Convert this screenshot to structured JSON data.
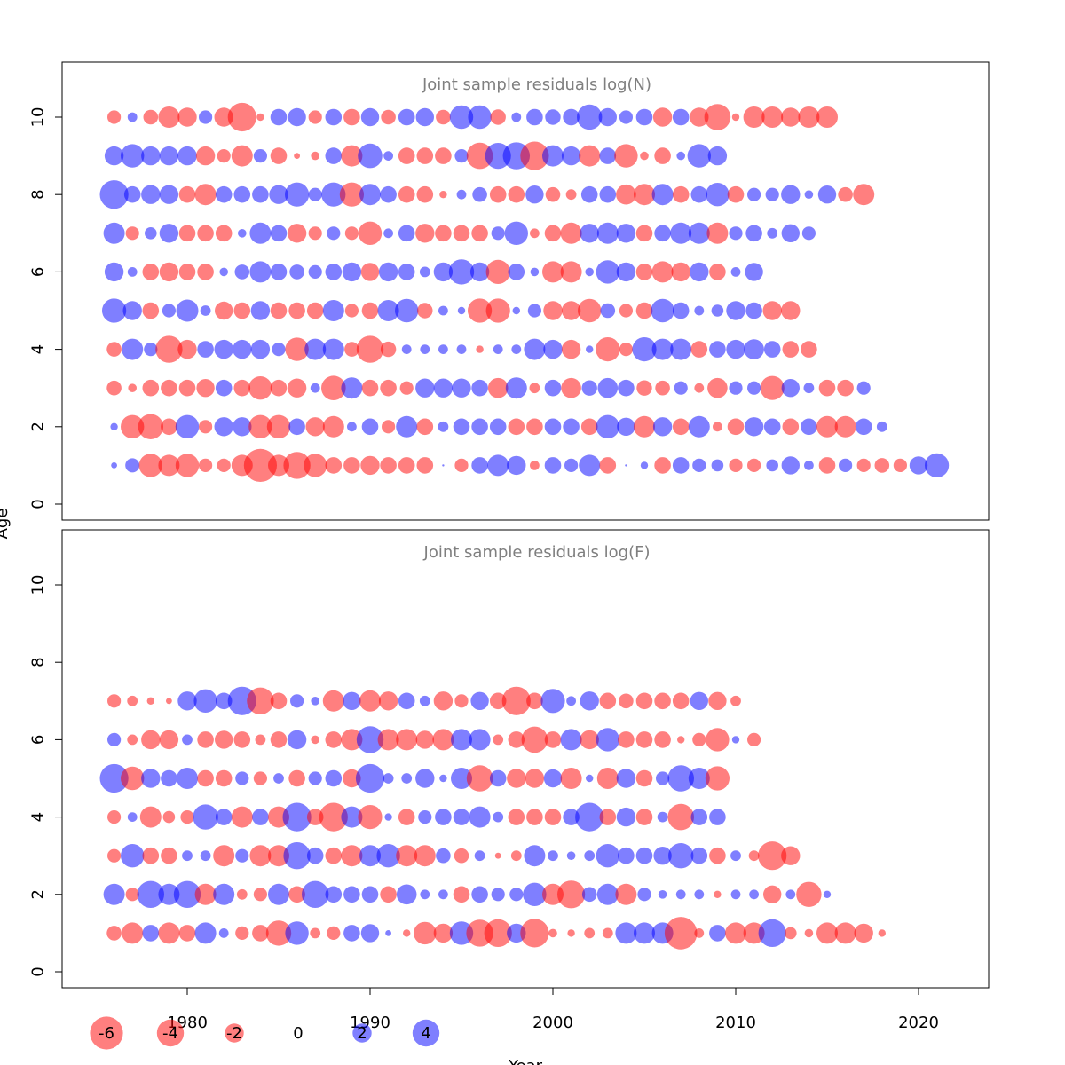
{
  "chart_data": [
    {
      "type": "scatter",
      "subtype": "bubble",
      "title": "Joint sample residuals log(N)",
      "xlabel": "Year",
      "ylabel": "Age",
      "xlim": [
        1974,
        2024
      ],
      "ylim": [
        0,
        11
      ],
      "xticks": [
        1980,
        1990,
        2000,
        2010,
        2020
      ],
      "yticks": [
        0,
        2,
        4,
        6,
        8,
        10
      ],
      "years_first": 1976,
      "ages": [
        1,
        2,
        3,
        4,
        5,
        6,
        7,
        8,
        9,
        10
      ],
      "residuals_by_age": {
        "1": [
          0.2,
          1.1,
          -3,
          -2.5,
          -3,
          -1,
          -1,
          -2.5,
          -6,
          -2.5,
          -4,
          -3,
          -1.5,
          -1.5,
          -2,
          -1.5,
          -1.5,
          -1.5,
          0,
          -1,
          1.5,
          2.5,
          2,
          -0.5,
          1.5,
          1,
          2.5,
          -1.5,
          0,
          0.3,
          -1.5,
          1.5,
          1,
          0.8,
          -1,
          -1,
          0.8,
          1.8,
          0.5,
          -1.5,
          1,
          -1,
          -1.2,
          -1,
          1.8,
          3.2
        ],
        "2": [
          0.3,
          -3,
          -3.5,
          -1.5,
          3,
          -1,
          2,
          2,
          -3,
          -3,
          1.5,
          -2,
          -2.5,
          0.5,
          1.5,
          -1,
          2.5,
          -1.5,
          0.6,
          1.5,
          1.5,
          1.5,
          -1.5,
          -1.5,
          1.5,
          1.5,
          -1.5,
          3,
          1.8,
          -2.5,
          2,
          -1.5,
          2.5,
          -0.5,
          -1.5,
          2,
          1.5,
          -1.5,
          1.5,
          -2.5,
          -2.5,
          1.5,
          0.6
        ],
        "3": [
          -1.2,
          -0.4,
          -1.5,
          -1.5,
          -1.5,
          -1.8,
          1.5,
          -1.5,
          -3,
          -1.5,
          -2,
          0.5,
          -3.3,
          2.5,
          -1.5,
          -1.5,
          -1,
          2,
          2,
          2,
          1.5,
          -2.2,
          2.5,
          -0.6,
          1.5,
          -2.2,
          1.3,
          2.2,
          1.5,
          -1.3,
          -1.2,
          1,
          -0.5,
          -2.2,
          1,
          1,
          -3.2,
          1.8,
          0.6,
          -1.5,
          -1.5,
          1
        ],
        "4": [
          -1.2,
          2.5,
          1,
          -4,
          -2,
          1.5,
          2,
          2,
          2,
          1,
          -3,
          2.5,
          2.5,
          -1.2,
          -4,
          -1.3,
          0.5,
          0.5,
          0.5,
          0.5,
          -0.3,
          0.5,
          0.5,
          2.5,
          2,
          -2,
          0.3,
          -3.2,
          -1,
          3.2,
          2.5,
          2.5,
          -1.5,
          1.5,
          2,
          2.2,
          1.5,
          -1.5,
          -1.5
        ],
        "5": [
          3.2,
          2,
          -1.5,
          1,
          2.7,
          0.6,
          -1.8,
          -1.5,
          2,
          -1.5,
          -1.5,
          -1.5,
          2.5,
          -1,
          -1.5,
          2.5,
          3,
          -1.3,
          0.5,
          0.3,
          -3.2,
          -3.2,
          0.3,
          1,
          -2,
          -2,
          -3,
          1.2,
          -1,
          -1.5,
          3,
          1.5,
          0.5,
          0.8,
          2,
          1.5,
          -2,
          -2
        ],
        "6": [
          2,
          0.5,
          -1.5,
          -2,
          -1.5,
          -1.5,
          0.4,
          1.2,
          2.5,
          1.5,
          1.2,
          1,
          1.5,
          2,
          -1.8,
          2,
          1.5,
          0.6,
          2,
          3.5,
          2,
          -3.2,
          1.5,
          0.4,
          -2.5,
          -2.5,
          0.4,
          3,
          2,
          -1.5,
          -2.5,
          -2,
          2,
          -1.5,
          0.5,
          1.8
        ],
        "7": [
          2.5,
          -1,
          0.8,
          2,
          -1.5,
          -1.5,
          -1.5,
          0.4,
          2.5,
          1.5,
          -2,
          -1,
          1,
          -1,
          -3,
          0.5,
          1.5,
          -2,
          -1.5,
          -1.5,
          -1.5,
          1,
          3,
          -0.5,
          -1.5,
          -2.5,
          2,
          2.5,
          2,
          -1.5,
          1.5,
          2.5,
          2.5,
          -2.5,
          1,
          1.5,
          0.6,
          1.8,
          1
        ],
        "8": [
          4.5,
          1.5,
          2,
          2,
          -1.5,
          -2.5,
          1.5,
          1.5,
          1.5,
          2,
          3.2,
          1,
          3.2,
          -3.2,
          2.5,
          1.5,
          -1.5,
          -1.5,
          -0.3,
          0.5,
          1.2,
          -1.5,
          -1.5,
          1.8,
          -1.2,
          -0.6,
          1.5,
          1.5,
          -2.2,
          -2.5,
          2.5,
          -1.5,
          1.5,
          3,
          -1.5,
          1,
          1,
          2,
          0.4,
          1.8,
          -1.2,
          -2.5
        ],
        "9": [
          2,
          3,
          2,
          2,
          2,
          -2,
          -1,
          -2.5,
          1,
          -1.5,
          -0.2,
          -0.4,
          1.5,
          -2.5,
          3.3,
          0.5,
          -1.5,
          -1.5,
          -1.5,
          1,
          -3.8,
          3.7,
          4,
          -4.5,
          2.5,
          2,
          -2.5,
          1.5,
          -3,
          -0.4,
          -1.5,
          0.4,
          3,
          2
        ],
        "10": [
          -1,
          0.5,
          -1.2,
          -2.5,
          -2,
          1,
          -2,
          -4.5,
          -0.3,
          1.5,
          1.8,
          -1,
          1.5,
          -1.5,
          1.8,
          -1.2,
          1.5,
          1.8,
          -1.2,
          3,
          3,
          -1.3,
          0.5,
          1.5,
          1.3,
          1.5,
          3.5,
          1.8,
          1,
          1.5,
          -2,
          1.5,
          -2,
          -3.8,
          -0.3,
          -2.5,
          -2.5,
          -2,
          -2.5,
          -2.5
        ]
      },
      "note_series": "positive residuals drawn blue, negative red; symbol area proportional to |residual|"
    },
    {
      "type": "scatter",
      "subtype": "bubble",
      "title": "Joint sample residuals log(F)",
      "xlabel": "Year",
      "ylabel": "Age",
      "xlim": [
        1974,
        2024
      ],
      "ylim": [
        0,
        11
      ],
      "xticks": [
        1980,
        1990,
        2000,
        2010,
        2020
      ],
      "yticks": [
        0,
        2,
        4,
        6,
        8,
        10
      ],
      "years_first": 1976,
      "ages": [
        1,
        2,
        3,
        4,
        5,
        6,
        7
      ],
      "residuals_by_age": {
        "1": [
          -1.2,
          -2.5,
          1.5,
          -2.5,
          -1.5,
          2.5,
          0.5,
          -1,
          -1.5,
          -3.5,
          3,
          -0.6,
          -1,
          1.5,
          1.8,
          0.2,
          -0.3,
          -2.8,
          -2,
          3,
          -4,
          -4.2,
          2,
          -4.5,
          -0.4,
          -0.3,
          -0.6,
          -0.6,
          2.5,
          2.5,
          2.5,
          -5.8,
          -0.5,
          1.5,
          -2.5,
          -2.5,
          4.2,
          -0.8,
          -0.4,
          -2.5,
          -2.5,
          -2,
          -0.3
        ],
        "2": [
          2.5,
          -1,
          4,
          2.5,
          4,
          -2.5,
          2.5,
          -0.6,
          -1,
          2.5,
          -1.5,
          4,
          1.5,
          1.5,
          1.5,
          -1.5,
          2.2,
          0.5,
          0.5,
          -1.5,
          1.5,
          1,
          1,
          3,
          -2.5,
          -4.2,
          1.2,
          2.5,
          -2.5,
          1,
          0.4,
          0.5,
          0.5,
          -0.3,
          0.5,
          0.5,
          -1.8,
          0.5,
          -3.5,
          0.3
        ],
        "3": [
          -1,
          3,
          -1.5,
          -1.5,
          0.6,
          0.6,
          -2.5,
          1,
          -2.5,
          -2.5,
          4,
          1.5,
          -1.5,
          -2.5,
          2.5,
          3,
          -2.5,
          -2.5,
          1.2,
          -1.2,
          0.6,
          -0.2,
          -0.6,
          2.5,
          0.6,
          0.4,
          0.6,
          3,
          1.5,
          1.5,
          1.8,
          3.5,
          1.5,
          -1.5,
          0.6,
          -0.6,
          -4.5,
          -2
        ],
        "4": [
          -1,
          0.5,
          -2.5,
          -0.8,
          -1,
          3.5,
          1.5,
          -2.5,
          1.5,
          -2.5,
          4.5,
          -1.5,
          -4.5,
          2.5,
          -3.2,
          0.3,
          -1.5,
          1,
          1.5,
          1.5,
          2.5,
          0.6,
          -1.5,
          -1.5,
          -1.5,
          1.5,
          4.5,
          -1.5,
          2,
          -1.5,
          0.6,
          -3.8,
          1.5,
          1.5
        ],
        "5": [
          4.5,
          -3,
          2,
          1.5,
          2.5,
          -1.5,
          -1.5,
          1,
          -1,
          0.6,
          -1.5,
          1,
          1.5,
          -1.8,
          4.5,
          0.6,
          0.6,
          2,
          0.3,
          2.5,
          -3.8,
          1.5,
          -2,
          -2,
          1.8,
          -2.5,
          0.3,
          -2.5,
          2,
          -1.5,
          1,
          3.8,
          2.5,
          -3.2
        ],
        "6": [
          1,
          -0.6,
          -2,
          -2,
          0.6,
          -1.5,
          -1.8,
          -1.5,
          -0.6,
          -1.5,
          2,
          -0.4,
          -1.5,
          -2.5,
          4,
          -2.5,
          -2.5,
          -1.8,
          -2.5,
          2.5,
          2.5,
          -0.6,
          -1.5,
          -3.8,
          -1.5,
          2.5,
          -2,
          3,
          -1.5,
          -1.5,
          -1.5,
          -0.3,
          -1,
          -3,
          0.3,
          -1
        ],
        "7": [
          -1,
          -0.6,
          -0.3,
          -0.2,
          2,
          3,
          1.5,
          4.5,
          -4,
          -1.5,
          1,
          0.4,
          -2.5,
          1.8,
          -2.5,
          -2,
          1.5,
          0.6,
          -2,
          -1,
          1.8,
          -1.5,
          -4.5,
          -1.5,
          3.2,
          0.5,
          2,
          -1.5,
          -1.2,
          -1.5,
          -1.5,
          -1.5,
          1.8,
          -1.8,
          -0.6
        ]
      },
      "note_series": "positive residuals drawn blue, negative red; symbol area proportional to |residual|"
    }
  ],
  "legend": {
    "position": "bottom",
    "items": [
      {
        "label": "-6",
        "value": -6
      },
      {
        "label": "-4",
        "value": -4
      },
      {
        "label": "-2",
        "value": -2
      },
      {
        "label": "0",
        "value": 0
      },
      {
        "label": "2",
        "value": 2
      },
      {
        "label": "4",
        "value": 4
      }
    ]
  },
  "colors": {
    "negative": "#ff0000",
    "positive": "#0000ff",
    "title": "#7f7f7f",
    "frame": "#000000"
  }
}
